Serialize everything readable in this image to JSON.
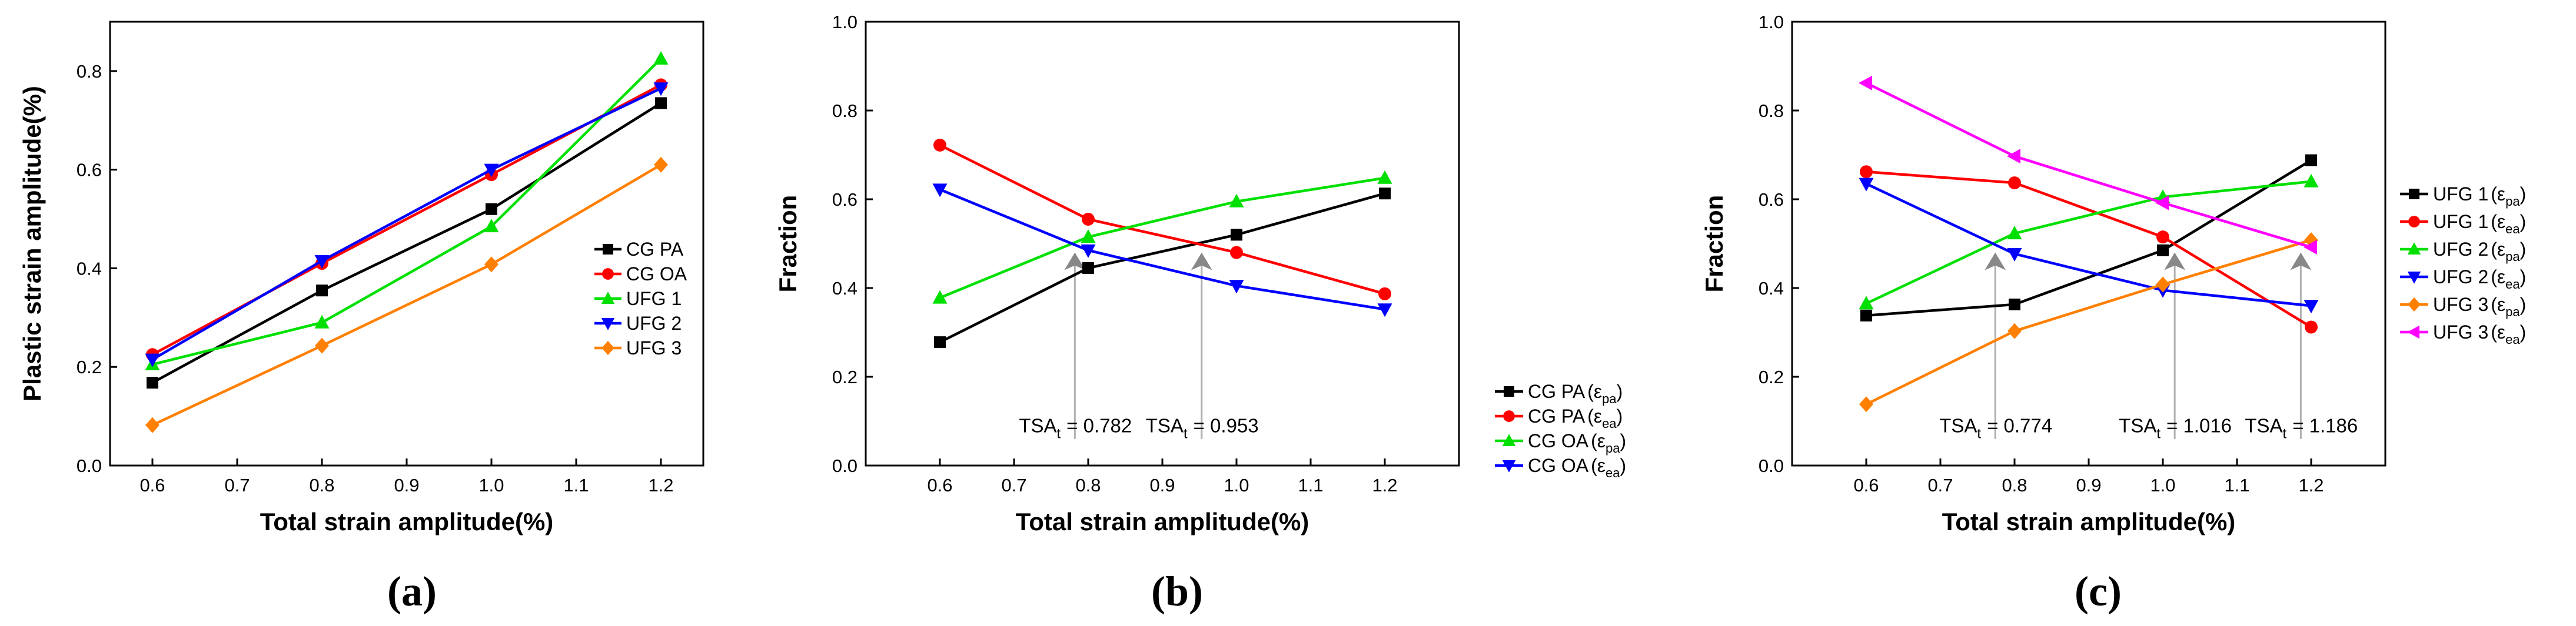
{
  "chart_data": [
    {
      "id": "a",
      "type": "line",
      "panel_label": "(a)",
      "xlabel": "Total strain amplitude(%)",
      "ylabel": "Plastic strain amplitude(%)",
      "xlim": [
        0.55,
        1.25
      ],
      "ylim": [
        0.0,
        0.9
      ],
      "xticks": [
        "0.6",
        "0.7",
        "0.8",
        "0.9",
        "1.0",
        "1.1",
        "1.2"
      ],
      "yticks": [
        "0.0",
        "0.2",
        "0.4",
        "0.6",
        "0.8"
      ],
      "legend_position": "bottom-right",
      "x": [
        0.6,
        0.8,
        1.0,
        1.2
      ],
      "series": [
        {
          "name": "CG PA",
          "color": "#000000",
          "marker": "square",
          "values": [
            0.168,
            0.355,
            0.52,
            0.735
          ]
        },
        {
          "name": "CG OA",
          "color": "#ff0000",
          "marker": "circle",
          "values": [
            0.225,
            0.41,
            0.59,
            0.772
          ]
        },
        {
          "name": "UFG 1",
          "color": "#00e000",
          "marker": "triangle-up",
          "values": [
            0.205,
            0.29,
            0.485,
            0.825
          ]
        },
        {
          "name": "UFG 2",
          "color": "#0000ff",
          "marker": "triangle-down",
          "values": [
            0.215,
            0.415,
            0.6,
            0.765
          ]
        },
        {
          "name": "UFG 3",
          "color": "#ff8000",
          "marker": "diamond",
          "values": [
            0.082,
            0.243,
            0.408,
            0.61
          ]
        }
      ]
    },
    {
      "id": "b",
      "type": "line",
      "panel_label": "(b)",
      "xlabel": "Total strain amplitude(%)",
      "ylabel": "Fraction",
      "xlim": [
        0.5,
        1.3
      ],
      "ylim": [
        0.0,
        1.0
      ],
      "xticks": [
        "0.6",
        "0.7",
        "0.8",
        "0.9",
        "1.0",
        "1.1",
        "1.2"
      ],
      "yticks": [
        "0.0",
        "0.2",
        "0.4",
        "0.6",
        "0.8",
        "1.0"
      ],
      "legend_position": "bottom-right-outside",
      "x": [
        0.6,
        0.8,
        1.0,
        1.2
      ],
      "series": [
        {
          "name": "CG PA",
          "sub": "pa",
          "color": "#000000",
          "marker": "square",
          "values": [
            0.278,
            0.445,
            0.52,
            0.613
          ]
        },
        {
          "name": "CG PA",
          "sub": "ea",
          "color": "#ff0000",
          "marker": "circle",
          "values": [
            0.722,
            0.555,
            0.48,
            0.387
          ]
        },
        {
          "name": "CG OA",
          "sub": "pa",
          "color": "#00e000",
          "marker": "triangle-up",
          "values": [
            0.378,
            0.515,
            0.595,
            0.648
          ]
        },
        {
          "name": "CG OA",
          "sub": "ea",
          "color": "#0000ff",
          "marker": "triangle-down",
          "values": [
            0.622,
            0.485,
            0.405,
            0.352
          ]
        }
      ],
      "annotations": [
        {
          "label": "TSA",
          "sub": "t",
          "value": "= 0.782",
          "x": 0.782,
          "y_arrow": 0.48
        },
        {
          "label": "TSA",
          "sub": "t",
          "value": "= 0.953",
          "x": 0.953,
          "y_arrow": 0.48
        }
      ]
    },
    {
      "id": "c",
      "type": "line",
      "panel_label": "(c)",
      "xlabel": "Total strain amplitude(%)",
      "ylabel": "Fraction",
      "xlim": [
        0.5,
        1.3
      ],
      "ylim": [
        0.0,
        1.0
      ],
      "xticks": [
        "0.6",
        "0.7",
        "0.8",
        "0.9",
        "1.0",
        "1.1",
        "1.2"
      ],
      "yticks": [
        "0.0",
        "0.2",
        "0.4",
        "0.6",
        "0.8",
        "1.0"
      ],
      "legend_position": "bottom-right-outside",
      "x": [
        0.6,
        0.8,
        1.0,
        1.2
      ],
      "series": [
        {
          "name": "UFG 1",
          "sub": "pa",
          "color": "#000000",
          "marker": "square",
          "values": [
            0.338,
            0.363,
            0.485,
            0.688
          ]
        },
        {
          "name": "UFG 1",
          "sub": "ea",
          "color": "#ff0000",
          "marker": "circle",
          "values": [
            0.662,
            0.637,
            0.515,
            0.312
          ]
        },
        {
          "name": "UFG 2",
          "sub": "pa",
          "color": "#00e000",
          "marker": "triangle-up",
          "values": [
            0.365,
            0.523,
            0.605,
            0.64
          ]
        },
        {
          "name": "UFG 2",
          "sub": "ea",
          "color": "#0000ff",
          "marker": "triangle-down",
          "values": [
            0.635,
            0.477,
            0.395,
            0.36
          ]
        },
        {
          "name": "UFG 3",
          "sub": "pa",
          "color": "#ff8000",
          "marker": "diamond",
          "values": [
            0.138,
            0.303,
            0.408,
            0.508
          ]
        },
        {
          "name": "UFG 3",
          "sub": "ea",
          "color": "#ff00ff",
          "marker": "triangle-left",
          "values": [
            0.862,
            0.697,
            0.592,
            0.492
          ]
        }
      ],
      "annotations": [
        {
          "label": "TSA",
          "sub": "t",
          "value": "= 0.774",
          "x": 0.774,
          "y_arrow": 0.48
        },
        {
          "label": "TSA",
          "sub": "t",
          "value": "= 1.016",
          "x": 1.016,
          "y_arrow": 0.48
        },
        {
          "label": "TSA",
          "sub": "t",
          "value": "= 1.186",
          "x": 1.186,
          "y_arrow": 0.48
        }
      ]
    }
  ]
}
